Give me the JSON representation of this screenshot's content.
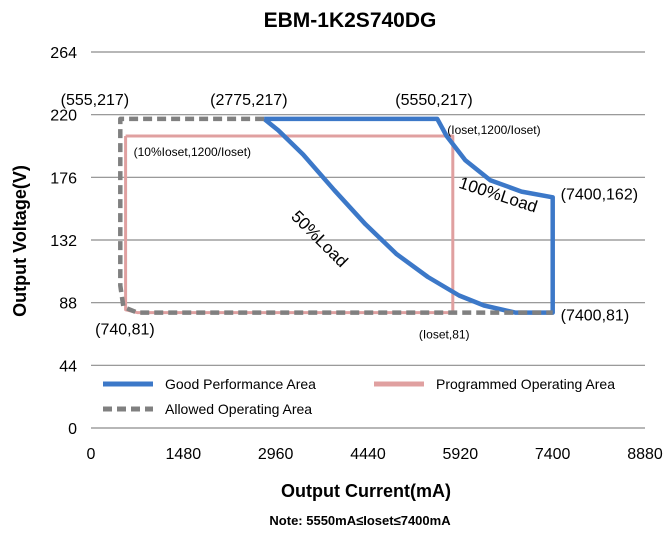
{
  "chart_data": {
    "type": "line",
    "title": "EBM-1K2S740DG",
    "xlabel": "Output Current(mA)",
    "ylabel": "Output Voltage(V)",
    "note": "Note:  5550mA≤Ioset≤7400mA",
    "xlim": [
      0,
      8880
    ],
    "ylim": [
      0,
      264
    ],
    "xticks": [
      "0",
      "1480",
      "2960",
      "4440",
      "5920",
      "7400",
      "8880"
    ],
    "yticks": [
      "0",
      "44",
      "88",
      "132",
      "176",
      "220",
      "264"
    ],
    "grid": "horizontal",
    "legend_position": "bottom",
    "series": [
      {
        "name": "Good Performance Area",
        "color": "#3c78c8",
        "style": "solid",
        "points": [
          [
            2775,
            217
          ],
          [
            5550,
            217
          ],
          [
            5700,
            205
          ],
          [
            6000,
            188
          ],
          [
            6400,
            174
          ],
          [
            6900,
            166
          ],
          [
            7400,
            162
          ],
          [
            7400,
            81
          ],
          [
            6800,
            81
          ],
          [
            6300,
            86
          ],
          [
            5900,
            93
          ],
          [
            5400,
            106
          ],
          [
            4900,
            122
          ],
          [
            4400,
            143
          ],
          [
            3900,
            167
          ],
          [
            3400,
            192
          ],
          [
            3000,
            209
          ],
          [
            2775,
            217
          ]
        ]
      },
      {
        "name": "Programmed Operating Area",
        "color": "#e0a0a0",
        "style": "solid",
        "points": [
          [
            555,
            205
          ],
          [
            5800,
            205
          ],
          [
            5800,
            81
          ],
          [
            740,
            81
          ],
          [
            555,
            83
          ],
          [
            555,
            205
          ]
        ]
      },
      {
        "name": "Allowed Operating Area",
        "color": "#808080",
        "style": "dashed",
        "points": [
          [
            2775,
            217
          ],
          [
            555,
            217
          ],
          [
            470,
            217
          ],
          [
            470,
            100
          ],
          [
            520,
            85
          ],
          [
            740,
            81
          ],
          [
            7400,
            81
          ]
        ]
      }
    ],
    "annotations": [
      {
        "text": "(555,217)",
        "x": 555,
        "y": 217,
        "size": "normal"
      },
      {
        "text": "(2775,217)",
        "x": 2775,
        "y": 217,
        "size": "normal"
      },
      {
        "text": "(5550,217)",
        "x": 5550,
        "y": 217,
        "size": "normal"
      },
      {
        "text": "(Ioset,1200/Ioset)",
        "x": 5550,
        "y": 217,
        "size": "small"
      },
      {
        "text": "(10%Ioset,1200/Ioset)",
        "x": 555,
        "y": 205,
        "size": "small"
      },
      {
        "text": "(7400,162)",
        "x": 7400,
        "y": 162,
        "size": "normal"
      },
      {
        "text": "(7400,81)",
        "x": 7400,
        "y": 81,
        "size": "normal"
      },
      {
        "text": "(740,81)",
        "x": 740,
        "y": 81,
        "size": "normal"
      },
      {
        "text": "(Ioset,81)",
        "x": 5800,
        "y": 81,
        "size": "small"
      }
    ],
    "curve_labels": [
      {
        "text": "50%Load",
        "x": 3600,
        "y": 130,
        "angle": 45
      },
      {
        "text": "100%Load",
        "x": 6500,
        "y": 160,
        "angle": 18
      }
    ]
  }
}
